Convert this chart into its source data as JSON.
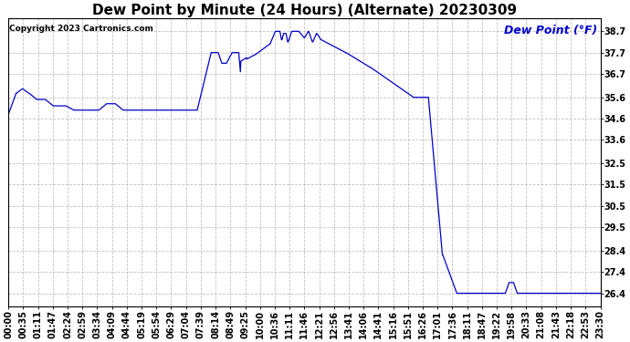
{
  "title": "Dew Point by Minute (24 Hours) (Alternate) 20230309",
  "copyright": "Copyright 2023 Cartronics.com",
  "legend_label": "Dew Point (°F)",
  "background_color": "#ffffff",
  "line_color": "#0000cc",
  "legend_color": "#0000cc",
  "yticks": [
    26.4,
    27.4,
    28.4,
    29.5,
    30.5,
    31.5,
    32.5,
    33.6,
    34.6,
    35.6,
    36.7,
    37.7,
    38.7
  ],
  "ylim": [
    25.8,
    39.3
  ],
  "total_minutes": 1440,
  "grid_color": "#bbbbbb",
  "title_fontsize": 11,
  "tick_fontsize": 7,
  "legend_fontsize": 9,
  "copyright_fontsize": 6.5,
  "xtick_labels": [
    "00:00",
    "00:35",
    "01:11",
    "01:47",
    "02:24",
    "02:59",
    "03:34",
    "04:09",
    "04:44",
    "05:19",
    "05:54",
    "06:29",
    "07:04",
    "07:39",
    "08:14",
    "08:49",
    "09:25",
    "10:00",
    "10:36",
    "11:11",
    "11:46",
    "12:21",
    "12:56",
    "13:41",
    "14:06",
    "14:41",
    "15:16",
    "15:51",
    "16:26",
    "17:01",
    "17:36",
    "18:11",
    "18:47",
    "19:22",
    "19:58",
    "20:33",
    "21:08",
    "21:43",
    "22:18",
    "22:53",
    "23:30"
  ]
}
